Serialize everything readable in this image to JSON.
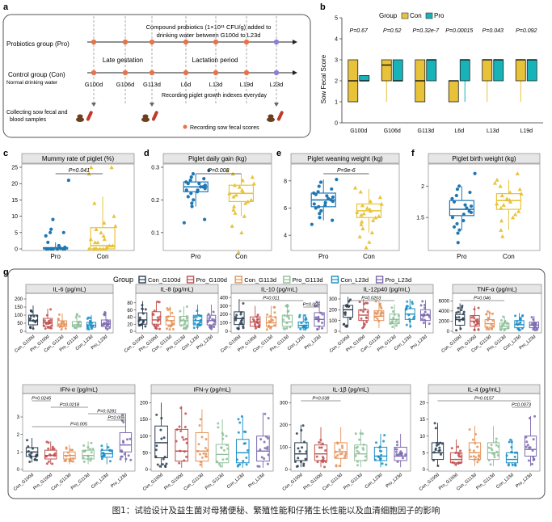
{
  "colors": {
    "con": "#e8c33a",
    "pro": "#17b3b9",
    "cyto": [
      "#2b3e50",
      "#c0504d",
      "#e4935a",
      "#8fbf9a",
      "#1a8fc6",
      "#7b68b0"
    ],
    "group_box": "#1f77b4",
    "group_box2": "#e8c33a",
    "accent": "#e8734a",
    "p_text": "#333333",
    "line": "#333333"
  },
  "panel_a": {
    "letter": "a",
    "pro_group": "Probiotics group (Pro)",
    "con_group": "Control group (Con)",
    "con_sub": "Normal drinking water",
    "compound_line1": "Compound probiotics (1×10¹¹ CFU/g) added to",
    "compound_line2": "drinking water between G100d to L23d",
    "late_gestation": "Late gestation",
    "lactation": "Lactation period",
    "days": [
      "G100d",
      "G106d",
      "G113d",
      "L6d",
      "L13d",
      "L19d",
      "L23d"
    ],
    "recording_growth": "Recording piglet growth indexes everyday",
    "collecting_line1": "Collecting sow fecal and",
    "collecting_line2": "blood samples",
    "recording_scores": "Recording sow fecal scores"
  },
  "panel_b": {
    "letter": "b",
    "legend_title": "Group",
    "legend": [
      "Con",
      "Pro"
    ],
    "ylabel": "Sow Fecal Score",
    "chart_data": {
      "type": "box",
      "categories": [
        "G100d",
        "G106d",
        "G113d",
        "L6d",
        "L13d",
        "L19d"
      ],
      "ylim": [
        0,
        5
      ],
      "yticks": [
        0,
        1,
        2,
        3,
        4,
        5
      ],
      "pvalues": [
        "P=0.67",
        "P=0.52",
        "P=0.32e-7",
        "P=0.00015",
        "P=0.043",
        "P=0.092"
      ],
      "series": [
        {
          "name": "Con",
          "boxes": [
            [
              1,
              1,
              2,
              3,
              3
            ],
            [
              1,
              2,
              2.75,
              3,
              3
            ],
            [
              1,
              1,
              2,
              3,
              3
            ],
            [
              1,
              1,
              2,
              2,
              2
            ],
            [
              1,
              2,
              3,
              3,
              3
            ],
            [
              1,
              2,
              3,
              3,
              3
            ]
          ]
        },
        {
          "name": "Pro",
          "boxes": [
            [
              2,
              2,
              2,
              2.25,
              2.25
            ],
            [
              2,
              2,
              2,
              3,
              3
            ],
            [
              2,
              2,
              3,
              3,
              3
            ],
            [
              1,
              2,
              3,
              3,
              3
            ],
            [
              2,
              2,
              3,
              3,
              3
            ],
            [
              2,
              2,
              3,
              3,
              3
            ]
          ]
        }
      ]
    }
  },
  "panel_c": {
    "letter": "c",
    "title": "Mummy rate of piglet (%)",
    "pvalue": "P=0.041",
    "chart_data": {
      "type": "box",
      "categories": [
        "Pro",
        "Con"
      ],
      "ylim": [
        0,
        25
      ],
      "yticks": [
        0,
        5,
        10,
        15,
        20,
        25
      ],
      "boxes": [
        [
          0,
          0,
          0,
          0.4,
          2
        ],
        [
          0,
          0,
          1,
          6.5,
          16
        ]
      ],
      "points": [
        [
          21,
          9,
          6,
          5,
          5,
          4,
          2,
          1,
          0.5,
          0.2,
          0,
          0,
          0,
          0,
          0,
          0,
          0,
          0,
          0,
          0
        ],
        [
          25,
          25,
          23,
          14,
          10,
          8,
          7,
          6,
          5,
          4,
          3,
          3,
          2,
          2,
          1,
          1,
          0.5,
          0,
          0,
          0,
          0,
          0,
          0,
          0,
          0
        ]
      ]
    }
  },
  "panel_d": {
    "letter": "d",
    "title": "Piglet daily gain (kg)",
    "pvalue": "P=0.008",
    "chart_data": {
      "type": "box",
      "categories": [
        "Pro",
        "Con"
      ],
      "ylim": [
        0.05,
        0.3
      ],
      "yticks": [
        0.1,
        0.2,
        0.3
      ],
      "boxes": [
        [
          0.18,
          0.225,
          0.24,
          0.255,
          0.28
        ],
        [
          0.15,
          0.195,
          0.22,
          0.245,
          0.28
        ]
      ],
      "points": [
        [
          0.29,
          0.28,
          0.27,
          0.265,
          0.26,
          0.255,
          0.25,
          0.25,
          0.245,
          0.24,
          0.24,
          0.235,
          0.23,
          0.23,
          0.225,
          0.22,
          0.21,
          0.2,
          0.19,
          0.18,
          0.14,
          0.13
        ],
        [
          0.29,
          0.28,
          0.27,
          0.26,
          0.25,
          0.245,
          0.24,
          0.23,
          0.225,
          0.22,
          0.215,
          0.21,
          0.2,
          0.195,
          0.19,
          0.18,
          0.17,
          0.16,
          0.15,
          0.12,
          0.1,
          0.04
        ]
      ]
    }
  },
  "panel_e": {
    "letter": "e",
    "title": "Piglet weaning weight (kg)",
    "pvalue": "P=9e-6",
    "chart_data": {
      "type": "box",
      "categories": [
        "Pro",
        "Con"
      ],
      "ylim": [
        3,
        9
      ],
      "yticks": [
        4,
        6,
        8
      ],
      "boxes": [
        [
          5.1,
          6.1,
          6.6,
          7.1,
          8.1
        ],
        [
          4.2,
          5.3,
          5.8,
          6.3,
          7.4
        ]
      ],
      "points": [
        [
          8.1,
          7.9,
          7.6,
          7.4,
          7.2,
          7.1,
          7,
          6.9,
          6.8,
          6.7,
          6.6,
          6.5,
          6.4,
          6.3,
          6.2,
          6.1,
          6,
          5.8,
          5.6,
          5.3,
          5.1,
          4.8
        ],
        [
          7.5,
          7.2,
          6.8,
          6.5,
          6.3,
          6.2,
          6,
          5.9,
          5.8,
          5.7,
          5.6,
          5.5,
          5.4,
          5.3,
          5.1,
          5,
          4.8,
          4.5,
          4.2,
          3.9,
          3.5,
          3.1
        ]
      ]
    }
  },
  "panel_f": {
    "letter": "f",
    "title": "Piglet birth weight (kg)",
    "chart_data": {
      "type": "box",
      "categories": [
        "Pro",
        "Con"
      ],
      "ylim": [
        1.0,
        2.3
      ],
      "yticks": [
        1.5,
        2.0
      ],
      "boxes": [
        [
          1.3,
          1.53,
          1.63,
          1.77,
          2.0
        ],
        [
          1.3,
          1.63,
          1.77,
          1.88,
          2.1
        ]
      ],
      "points": [
        [
          2.2,
          2.0,
          1.95,
          1.9,
          1.85,
          1.8,
          1.75,
          1.7,
          1.68,
          1.65,
          1.6,
          1.58,
          1.55,
          1.5,
          1.45,
          1.4,
          1.35,
          1.3,
          1.25,
          1.1
        ],
        [
          2.2,
          2.1,
          2.05,
          2.0,
          1.95,
          1.9,
          1.88,
          1.85,
          1.8,
          1.78,
          1.75,
          1.72,
          1.7,
          1.65,
          1.6,
          1.55,
          1.5,
          1.45,
          1.3,
          1.2
        ]
      ]
    }
  },
  "panel_g": {
    "letter": "g",
    "legend_title": "Group",
    "groups": [
      "Con_G100d",
      "Pro_G100d",
      "Con_G113d",
      "Pro_G113d",
      "Con_L23d",
      "Pro_L23d"
    ],
    "panels": [
      {
        "title": "IL-6 (pg/mL)",
        "ylim": [
          0,
          220
        ],
        "yticks": [
          0,
          50,
          100,
          150,
          200
        ],
        "boxes": [
          [
            15,
            40,
            65,
            100,
            160
          ],
          [
            15,
            30,
            55,
            80,
            140
          ],
          [
            10,
            30,
            45,
            65,
            110
          ],
          [
            10,
            28,
            40,
            60,
            110
          ],
          [
            10,
            25,
            38,
            55,
            100
          ],
          [
            10,
            30,
            45,
            70,
            120
          ]
        ],
        "sig": []
      },
      {
        "title": "IL-8 (pg/mL)",
        "ylim": [
          0,
          100
        ],
        "yticks": [
          0,
          20,
          40,
          60,
          80
        ],
        "boxes": [
          [
            5,
            20,
            32,
            52,
            85
          ],
          [
            5,
            20,
            32,
            55,
            85
          ],
          [
            5,
            18,
            30,
            42,
            70
          ],
          [
            5,
            18,
            30,
            42,
            70
          ],
          [
            5,
            18,
            30,
            45,
            75
          ],
          [
            5,
            18,
            30,
            45,
            75
          ]
        ],
        "sig": []
      },
      {
        "title": "IL-10 (pg/mL)",
        "ylim": [
          0,
          420
        ],
        "yticks": [
          0,
          100,
          200,
          300,
          400
        ],
        "boxes": [
          [
            20,
            80,
            150,
            230,
            380
          ],
          [
            20,
            60,
            110,
            170,
            300
          ],
          [
            20,
            60,
            100,
            170,
            300
          ],
          [
            20,
            60,
            110,
            190,
            320
          ],
          [
            10,
            40,
            70,
            110,
            200
          ],
          [
            20,
            60,
            140,
            220,
            360
          ]
        ],
        "sig": [
          {
            "from": 0,
            "to": 4,
            "text": "P=0.011"
          },
          {
            "from": 4,
            "to": 5,
            "text": "P=0.005"
          }
        ]
      },
      {
        "title": "IL-12p40 (pg/mL)",
        "ylim": [
          0,
          330
        ],
        "yticks": [
          0,
          100,
          200,
          300
        ],
        "boxes": [
          [
            40,
            130,
            200,
            240,
            320
          ],
          [
            30,
            100,
            150,
            200,
            300
          ],
          [
            30,
            100,
            140,
            190,
            280
          ],
          [
            20,
            70,
            110,
            160,
            250
          ],
          [
            30,
            110,
            160,
            210,
            300
          ],
          [
            30,
            100,
            150,
            200,
            290
          ]
        ],
        "sig": [
          {
            "from": 0,
            "to": 3,
            "text": "P=0.0203"
          }
        ]
      },
      {
        "title": "TNF-α (pg/mL)",
        "ylim": [
          0,
          7000
        ],
        "yticks": [
          0,
          2000,
          4000,
          6000
        ],
        "boxes": [
          [
            200,
            1200,
            2300,
            3300,
            5500
          ],
          [
            200,
            1000,
            2000,
            3100,
            5000
          ],
          [
            200,
            800,
            1500,
            2300,
            4000
          ],
          [
            100,
            500,
            1000,
            1600,
            3000
          ],
          [
            200,
            700,
            1300,
            2100,
            3600
          ],
          [
            200,
            700,
            1200,
            1800,
            3000
          ]
        ],
        "sig": [
          {
            "from": 0,
            "to": 3,
            "text": "P=0.046"
          }
        ]
      },
      {
        "title": "IFN-α (pg/mL)",
        "ylim": [
          0,
          4.2
        ],
        "yticks": [
          0,
          1,
          2,
          3
        ],
        "boxes": [
          [
            0.4,
            0.75,
            1.0,
            1.25,
            1.8
          ],
          [
            0.3,
            0.6,
            0.8,
            1.1,
            1.6
          ],
          [
            0.3,
            0.6,
            0.8,
            1.0,
            1.4
          ],
          [
            0.3,
            0.6,
            0.8,
            1.1,
            1.6
          ],
          [
            0.3,
            0.7,
            0.9,
            1.1,
            1.5
          ],
          [
            0.4,
            1.0,
            1.4,
            2.1,
            3.2
          ]
        ],
        "sig": [
          {
            "from": 0,
            "to": 1,
            "text": "P=0.0245"
          },
          {
            "from": 1,
            "to": 3,
            "text": "P=0.0218"
          },
          {
            "from": 3,
            "to": 5,
            "text": "P=0.0281"
          },
          {
            "from": 4,
            "to": 5,
            "text": "P=0.006"
          },
          {
            "from": 0,
            "to": 5,
            "text": "P=0.005"
          }
        ]
      },
      {
        "title": "IFN-γ (pg/mL)",
        "ylim": [
          0,
          220
        ],
        "yticks": [
          0,
          50,
          100,
          150,
          200
        ],
        "boxes": [
          [
            5,
            35,
            80,
            130,
            200
          ],
          [
            5,
            25,
            55,
            120,
            190
          ],
          [
            5,
            25,
            55,
            110,
            180
          ],
          [
            5,
            20,
            45,
            75,
            150
          ],
          [
            5,
            20,
            50,
            90,
            160
          ],
          [
            5,
            25,
            55,
            100,
            170
          ]
        ],
        "sig": []
      },
      {
        "title": "IL-1β (pg/mL)",
        "ylim": [
          0,
          330
        ],
        "yticks": [
          0,
          100,
          200,
          300
        ],
        "boxes": [
          [
            10,
            40,
            70,
            120,
            200
          ],
          [
            10,
            40,
            70,
            110,
            190
          ],
          [
            10,
            50,
            80,
            120,
            190
          ],
          [
            10,
            40,
            70,
            110,
            180
          ],
          [
            10,
            40,
            60,
            100,
            160
          ],
          [
            10,
            40,
            60,
            100,
            160
          ]
        ],
        "sig": [
          {
            "from": 0,
            "to": 2,
            "text": "P=0.038"
          }
        ]
      },
      {
        "title": "IL-4 (pg/mL)",
        "ylim": [
          0,
          22
        ],
        "yticks": [
          0,
          5,
          10,
          15,
          20
        ],
        "boxes": [
          [
            1,
            3,
            5,
            8,
            14
          ],
          [
            1,
            2,
            3,
            5,
            9
          ],
          [
            1,
            3,
            5,
            8,
            13
          ],
          [
            1,
            3,
            5,
            8,
            13
          ],
          [
            1,
            2,
            3,
            5,
            9
          ],
          [
            1,
            4,
            6,
            10,
            16
          ]
        ],
        "sig": [
          {
            "from": 0,
            "to": 5,
            "text": "P=0.0157"
          },
          {
            "from": 4,
            "to": 5,
            "text": "P=0.0073"
          }
        ]
      }
    ]
  },
  "caption": "图1：试验设计及益生菌对母猪便秘、繁殖性能和仔猪生长性能以及血清细胞因子的影响"
}
